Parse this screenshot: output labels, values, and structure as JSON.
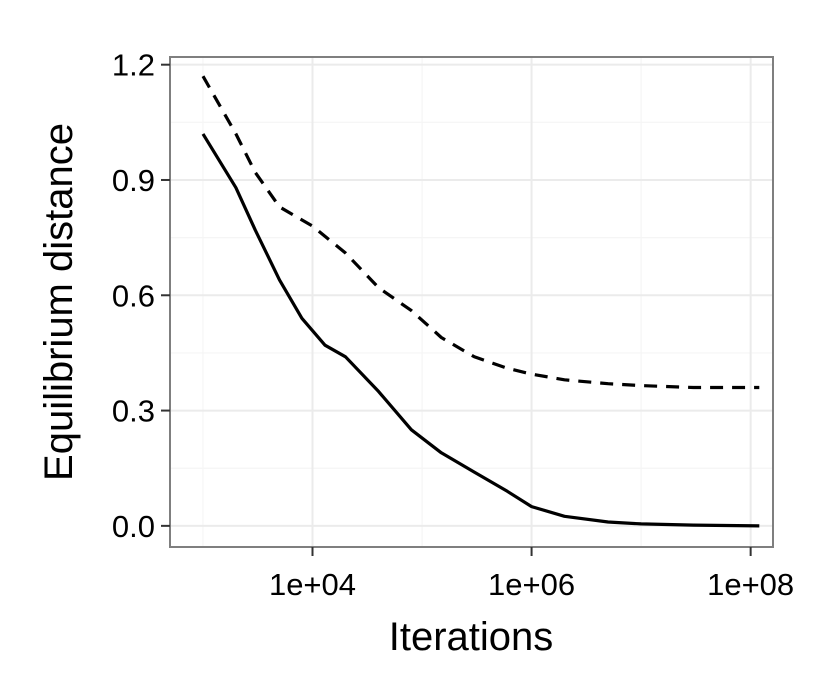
{
  "chart_data": {
    "type": "line",
    "xlabel": "Iterations",
    "ylabel": "Equilibrium distance",
    "x_scale": "log10",
    "x_range": [
      500,
      160000000
    ],
    "y_range": [
      -0.055,
      1.22
    ],
    "x_ticks": [
      {
        "value": 10000,
        "label": "1e+04"
      },
      {
        "value": 1000000,
        "label": "1e+06"
      },
      {
        "value": 100000000,
        "label": "1e+08"
      }
    ],
    "y_ticks": [
      {
        "value": 0.0,
        "label": "0.0"
      },
      {
        "value": 0.3,
        "label": "0.3"
      },
      {
        "value": 0.6,
        "label": "0.6"
      },
      {
        "value": 0.9,
        "label": "0.9"
      },
      {
        "value": 1.2,
        "label": "1.2"
      }
    ],
    "grid": true,
    "legend": "none",
    "colors": {
      "panel_border": "#7f7f7f",
      "grid_major": "#ebebeb",
      "grid_minor": "#f5f5f5",
      "line": "#000000",
      "tick": "#333333"
    },
    "series": [
      {
        "linetype": "solid",
        "points": [
          [
            1000,
            1.02
          ],
          [
            2000,
            0.88
          ],
          [
            3000,
            0.77
          ],
          [
            5000,
            0.64
          ],
          [
            8000,
            0.54
          ],
          [
            13000,
            0.47
          ],
          [
            20000,
            0.44
          ],
          [
            40000,
            0.35
          ],
          [
            80000,
            0.25
          ],
          [
            150000,
            0.19
          ],
          [
            300000,
            0.14
          ],
          [
            600000,
            0.09
          ],
          [
            1000000,
            0.05
          ],
          [
            2000000,
            0.025
          ],
          [
            5000000,
            0.01
          ],
          [
            10000000,
            0.005
          ],
          [
            30000000,
            0.002
          ],
          [
            120000000,
            0.0
          ]
        ]
      },
      {
        "linetype": "dashed",
        "points": [
          [
            1000,
            1.17
          ],
          [
            2000,
            1.02
          ],
          [
            3000,
            0.92
          ],
          [
            5000,
            0.83
          ],
          [
            10000,
            0.78
          ],
          [
            20000,
            0.71
          ],
          [
            40000,
            0.62
          ],
          [
            80000,
            0.56
          ],
          [
            150000,
            0.49
          ],
          [
            300000,
            0.44
          ],
          [
            600000,
            0.41
          ],
          [
            1000000,
            0.395
          ],
          [
            2000000,
            0.38
          ],
          [
            5000000,
            0.37
          ],
          [
            10000000,
            0.365
          ],
          [
            30000000,
            0.36
          ],
          [
            120000000,
            0.36
          ]
        ]
      }
    ]
  }
}
